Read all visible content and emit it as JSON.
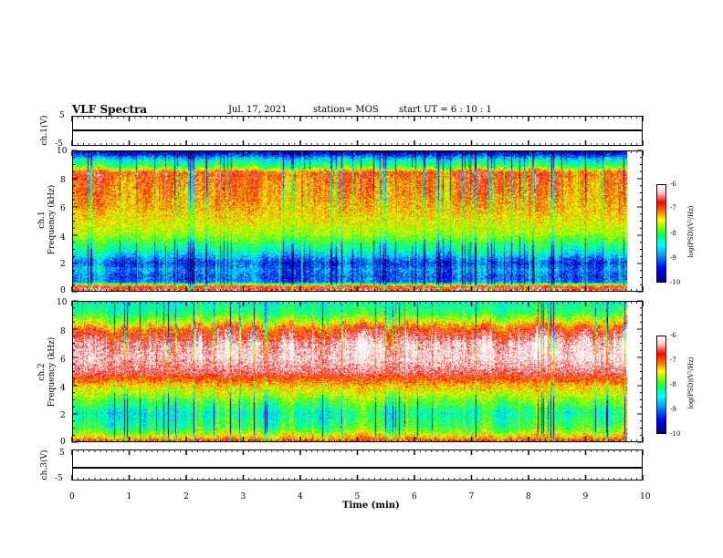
{
  "header": {
    "title": "VLF Spectra",
    "date": "Jul. 17, 2021",
    "station": "station= MOS",
    "start": "start  UT =   6 : 10 : 1"
  },
  "colors": {
    "scale": [
      "#000080",
      "#0000ff",
      "#00a0ff",
      "#00ffff",
      "#00ff60",
      "#80ff00",
      "#ffff00",
      "#ff8000",
      "#ff0000",
      "#ffc8c8",
      "#ffffff"
    ],
    "frame": "#000000",
    "background": "#ffffff"
  },
  "chart_data": [
    {
      "type": "line",
      "name": "ch1-waveform",
      "ylabel": "ch.1(V)",
      "ylim": [
        -5,
        5
      ],
      "yticks": [
        "5",
        "-5"
      ],
      "xlim": [
        0,
        10
      ],
      "values_note_constant": 0
    },
    {
      "type": "heatmap",
      "name": "ch1-spectrogram",
      "ylabel": "ch.1\nFrequency (kHz)",
      "ylabel_top": "ch.1",
      "ylabel_main": "Frequency (kHz)",
      "ylim": [
        0,
        10
      ],
      "yticks": [
        "0",
        "2",
        "4",
        "6",
        "8",
        "10"
      ],
      "xlim": [
        0,
        10
      ],
      "data_end_min": 9.83,
      "band_profile": [
        {
          "f": 0.0,
          "level": -6.6
        },
        {
          "f": 0.3,
          "level": -7.0
        },
        {
          "f": 0.6,
          "level": -9.3
        },
        {
          "f": 1.0,
          "level": -9.4
        },
        {
          "f": 1.5,
          "level": -9.2
        },
        {
          "f": 2.0,
          "level": -9.5
        },
        {
          "f": 2.5,
          "level": -9.0
        },
        {
          "f": 3.0,
          "level": -8.6
        },
        {
          "f": 4.0,
          "level": -7.9
        },
        {
          "f": 5.0,
          "level": -7.6
        },
        {
          "f": 6.0,
          "level": -7.4
        },
        {
          "f": 7.0,
          "level": -7.3
        },
        {
          "f": 8.0,
          "level": -7.2
        },
        {
          "f": 8.5,
          "level": -7.0
        },
        {
          "f": 8.9,
          "level": -8.2
        },
        {
          "f": 9.4,
          "level": -8.8
        },
        {
          "f": 9.8,
          "level": -9.6
        },
        {
          "f": 10.0,
          "level": -9.8
        }
      ],
      "colorbar": {
        "label": "log(PSD)(V²/Hz)",
        "ticks": [
          "-6",
          "-7",
          "-8",
          "-9",
          "-10"
        ],
        "range": [
          -10,
          -6
        ]
      }
    },
    {
      "type": "heatmap",
      "name": "ch2-spectrogram",
      "ylabel_top": "ch.2",
      "ylabel_main": "Frequency (kHz)",
      "ylim": [
        0,
        10
      ],
      "yticks": [
        "0",
        "2",
        "4",
        "6",
        "8",
        "10"
      ],
      "xlim": [
        0,
        10
      ],
      "data_end_min": 9.83,
      "band_profile": [
        {
          "f": 0.0,
          "level": -7.0
        },
        {
          "f": 0.5,
          "level": -7.8
        },
        {
          "f": 1.0,
          "level": -8.3
        },
        {
          "f": 2.0,
          "level": -8.6
        },
        {
          "f": 3.0,
          "level": -8.0
        },
        {
          "f": 4.0,
          "level": -7.4
        },
        {
          "f": 5.0,
          "level": -6.5
        },
        {
          "f": 6.0,
          "level": -6.2
        },
        {
          "f": 7.0,
          "level": -6.3
        },
        {
          "f": 8.0,
          "level": -6.9
        },
        {
          "f": 8.7,
          "level": -7.8
        },
        {
          "f": 9.3,
          "level": -8.4
        },
        {
          "f": 10.0,
          "level": -8.6
        }
      ],
      "colorbar": {
        "label": "log(PSD)(V²/Hz)",
        "ticks": [
          "-6",
          "-7",
          "-8",
          "-9",
          "-10"
        ],
        "range": [
          -10,
          -6
        ]
      }
    },
    {
      "type": "line",
      "name": "ch3-waveform",
      "ylabel": "ch.3(V)",
      "ylim": [
        -5,
        5
      ],
      "yticks": [
        "5",
        "-5"
      ],
      "xlim": [
        0,
        10
      ],
      "values_note_constant": 0
    }
  ],
  "xaxis": {
    "label": "Time (min)",
    "ticks": [
      "0",
      "1",
      "2",
      "3",
      "4",
      "5",
      "6",
      "7",
      "8",
      "9",
      "10"
    ]
  }
}
